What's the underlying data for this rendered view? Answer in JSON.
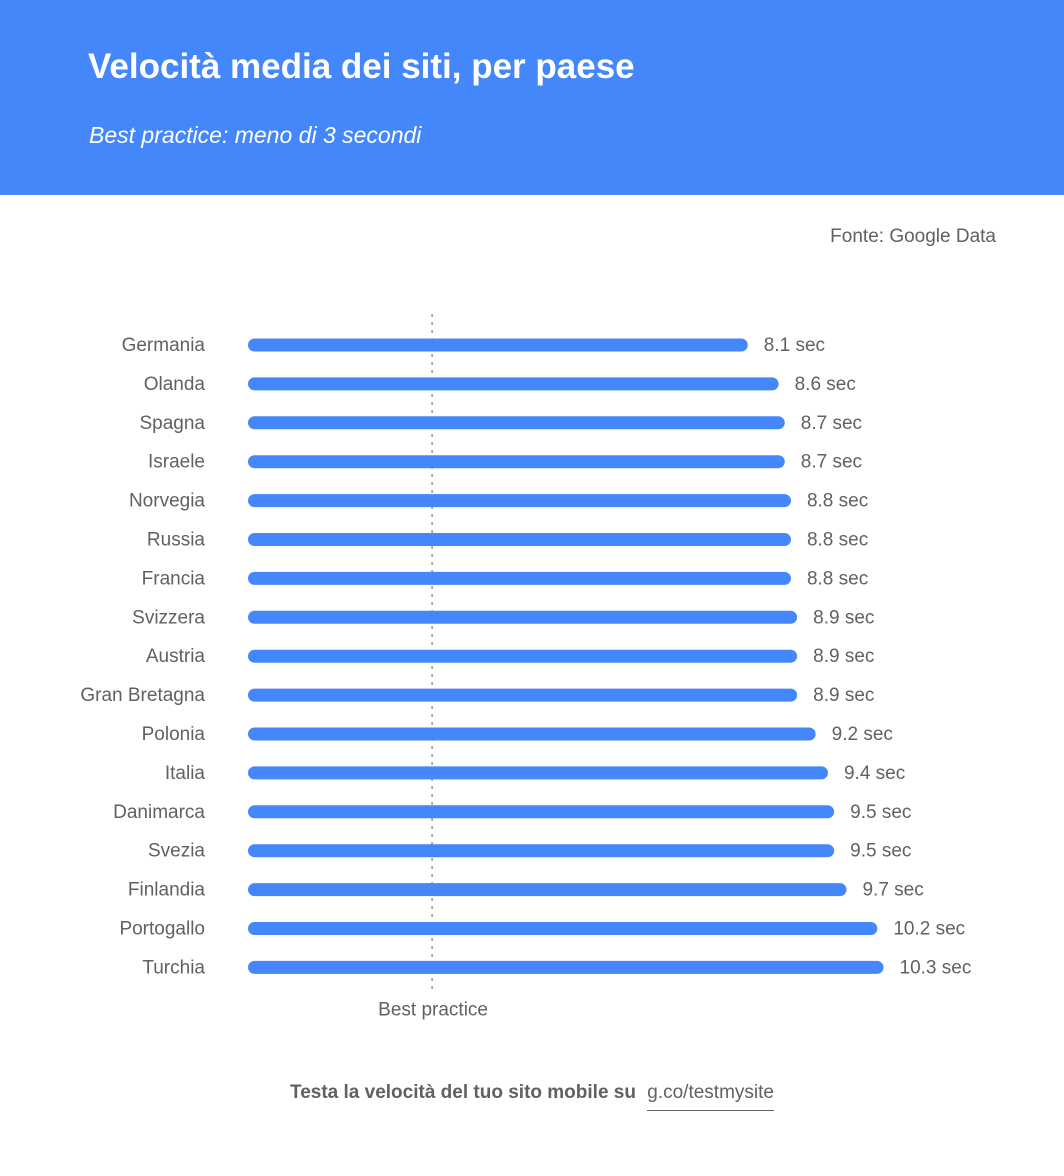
{
  "header": {
    "title": "Velocità media dei siti, per paese",
    "subtitle": "Best practice: meno di 3 secondi",
    "background_color": "#4487fb"
  },
  "source": "Fonte: Google Data",
  "chart_data": {
    "type": "bar",
    "orientation": "horizontal",
    "categories": [
      "Germania",
      "Olanda",
      "Spagna",
      "Israele",
      "Norvegia",
      "Russia",
      "Francia",
      "Svizzera",
      "Austria",
      "Gran Bretagna",
      "Polonia",
      "Italia",
      "Danimarca",
      "Svezia",
      "Finlandia",
      "Portogallo",
      "Turchia"
    ],
    "values": [
      8.1,
      8.6,
      8.7,
      8.7,
      8.8,
      8.8,
      8.8,
      8.9,
      8.9,
      8.9,
      9.2,
      9.4,
      9.5,
      9.5,
      9.7,
      10.2,
      10.3
    ],
    "value_labels": [
      "8.1 sec",
      "8.6 sec",
      "8.7 sec",
      "8.7 sec",
      "8.8 sec",
      "8.8 sec",
      "8.8 sec",
      "8.9 sec",
      "8.9 sec",
      "8.9 sec",
      "9.2 sec",
      "9.4 sec",
      "9.5 sec",
      "9.5 sec",
      "9.7 sec",
      "10.2 sec",
      "10.3 sec"
    ],
    "unit": "sec",
    "reference_line": {
      "value": 3,
      "label": "Best practice",
      "style": "dotted"
    },
    "bar_color": "#4487fb",
    "grid": false,
    "legend": "none"
  },
  "footer": {
    "cta": "Testa la velocità del tuo sito mobile su",
    "link": "g.co/testmysite"
  }
}
